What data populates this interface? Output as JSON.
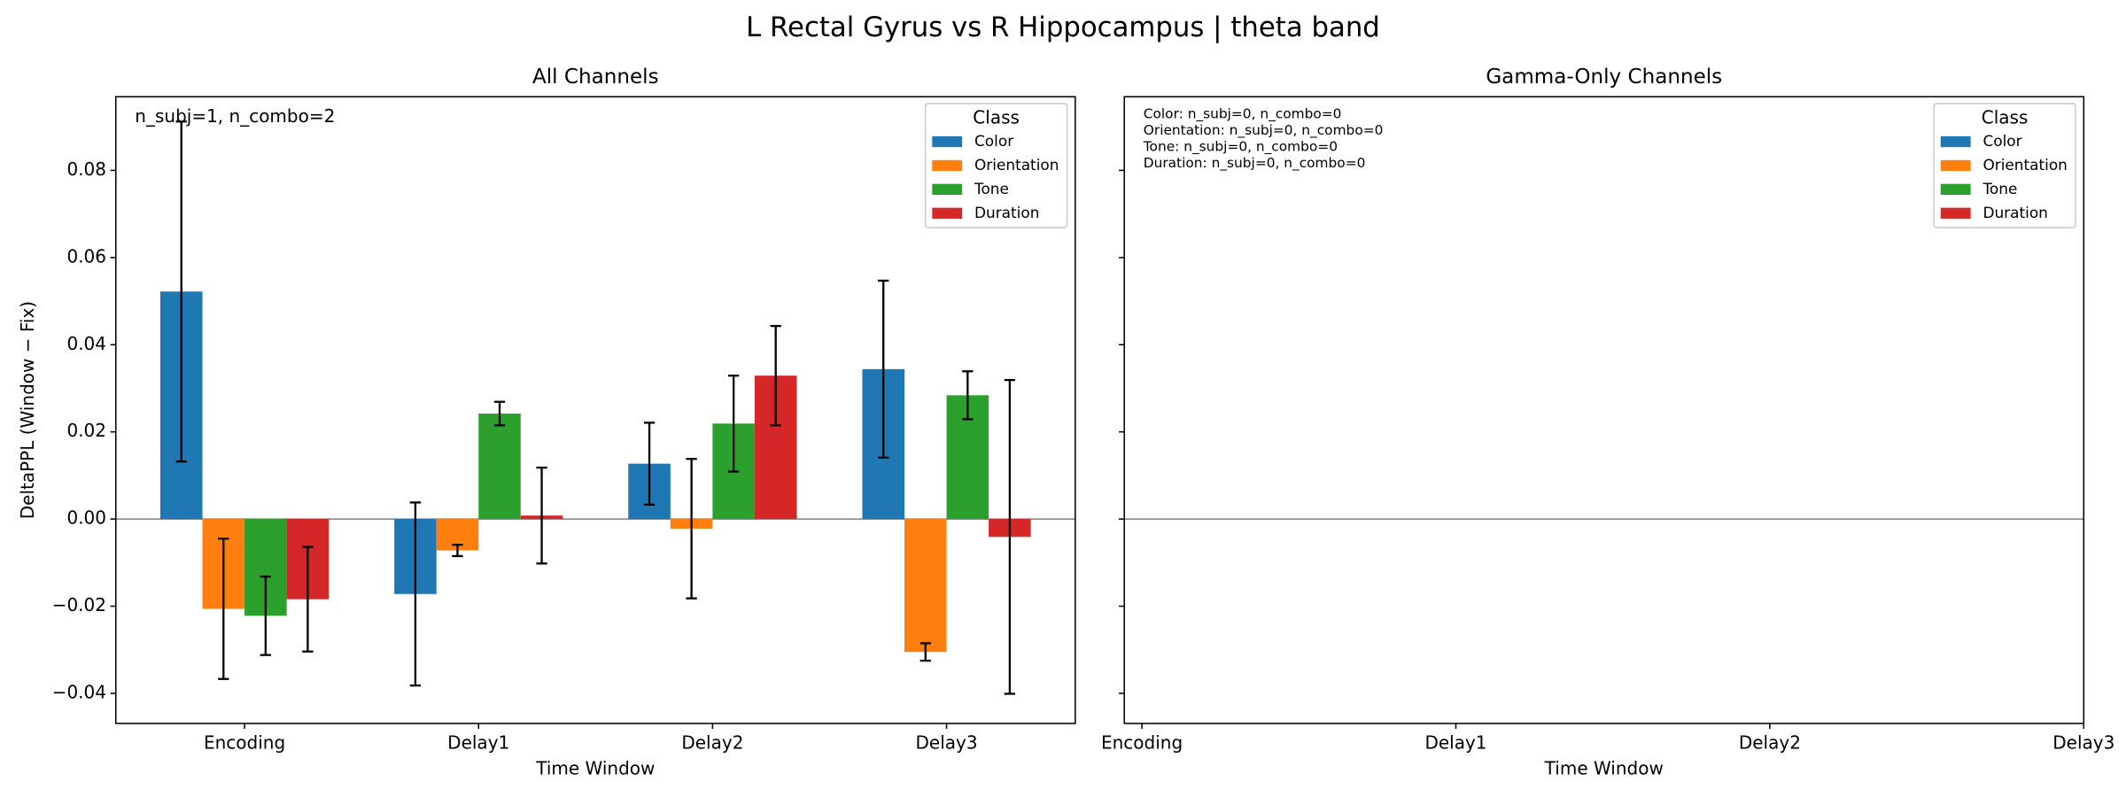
{
  "suptitle": "L Rectal Gyrus vs R Hippocampus  |  theta band",
  "chart_data": [
    {
      "type": "bar",
      "title": "All Channels",
      "xlabel": "Time Window",
      "ylabel": "DeltaPPL (Window − Fix)",
      "annotation": "n_subj=1, n_combo=2",
      "categories": [
        "Encoding",
        "Delay1",
        "Delay2",
        "Delay3"
      ],
      "xlim": [
        -0.55,
        3.55
      ],
      "ylim": [
        -0.0469,
        0.0969
      ],
      "yticks": [
        {
          "value": -0.04,
          "label": "−0.04"
        },
        {
          "value": -0.02,
          "label": "−0.02"
        },
        {
          "value": 0,
          "label": "0.00"
        },
        {
          "value": 0.02,
          "label": "0.02"
        },
        {
          "value": 0.04,
          "label": "0.04"
        },
        {
          "value": 0.06,
          "label": "0.06"
        },
        {
          "value": 0.08,
          "label": "0.08"
        }
      ],
      "legend_title": "Class",
      "legend": "upper right",
      "series": [
        {
          "name": "Color",
          "color": "#1f77b4",
          "values": [
            0.0522,
            -0.0172,
            0.0127,
            0.0344
          ],
          "errors": [
            0.039,
            0.021,
            0.0094,
            0.0203
          ]
        },
        {
          "name": "Orientation",
          "color": "#ff7f0e",
          "values": [
            -0.0206,
            -0.0072,
            -0.0022,
            -0.0305
          ],
          "errors": [
            0.0161,
            0.0013,
            0.016,
            0.002
          ]
        },
        {
          "name": "Tone",
          "color": "#2ca02c",
          "values": [
            -0.0222,
            0.0242,
            0.0219,
            0.0284
          ],
          "errors": [
            0.009,
            0.0027,
            0.011,
            0.0055
          ]
        },
        {
          "name": "Duration",
          "color": "#d62728",
          "values": [
            -0.0184,
            0.0008,
            0.0329,
            -0.0041
          ],
          "errors": [
            0.012,
            0.011,
            0.0114,
            0.036
          ]
        }
      ]
    },
    {
      "type": "empty",
      "title": "Gamma-Only Channels",
      "xlabel": "Time Window",
      "annotations": [
        "Color: n_subj=0, n_combo=0",
        "Orientation: n_subj=0, n_combo=0",
        "Tone: n_subj=0, n_combo=0",
        "Duration: n_subj=0, n_combo=0"
      ],
      "categories": [
        "Encoding",
        "Delay1",
        "Delay2",
        "Delay3"
      ],
      "xlim": [
        -0.056,
        3
      ],
      "ylim": [
        -0.0469,
        0.0969
      ],
      "yticks": [
        -0.04,
        -0.02,
        0,
        0.02,
        0.04,
        0.06,
        0.08
      ],
      "legend_title": "Class",
      "legend": "upper right",
      "series": [
        {
          "name": "Color",
          "color": "#1f77b4"
        },
        {
          "name": "Orientation",
          "color": "#ff7f0e"
        },
        {
          "name": "Tone",
          "color": "#2ca02c"
        },
        {
          "name": "Duration",
          "color": "#d62728"
        }
      ]
    }
  ]
}
